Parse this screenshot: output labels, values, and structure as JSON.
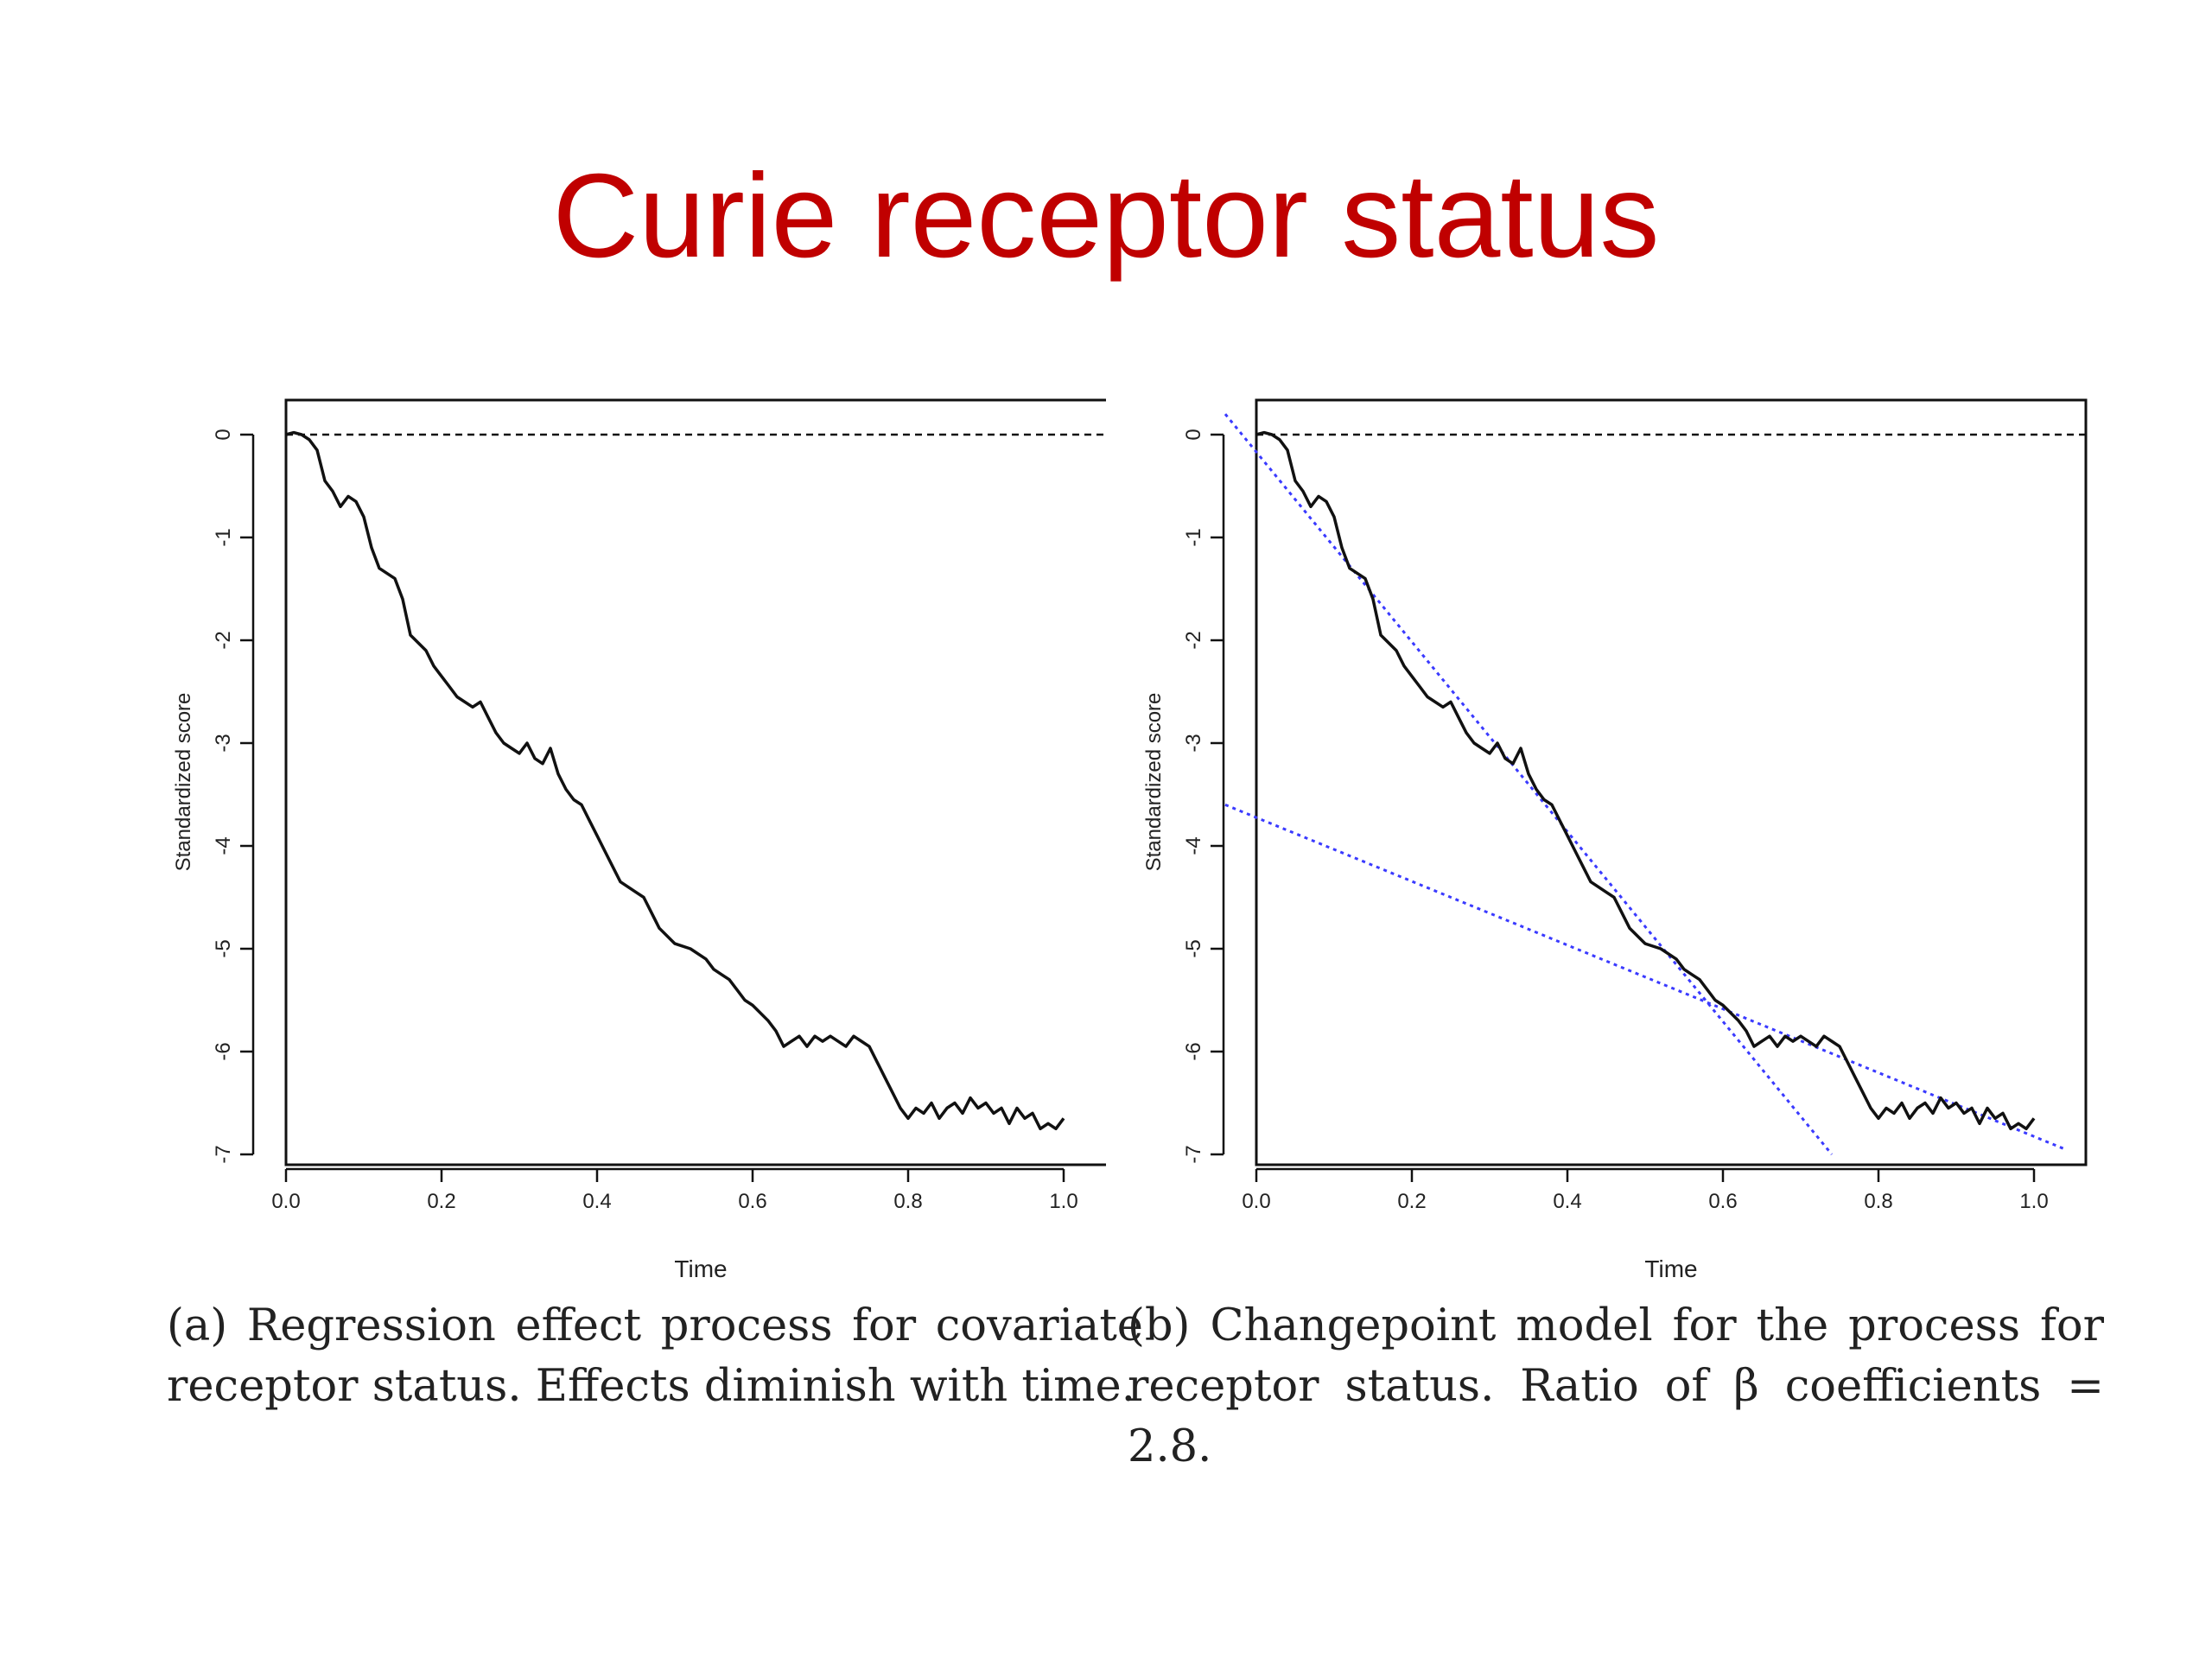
{
  "slide": {
    "title": "Curie receptor status"
  },
  "captions": [
    {
      "text": "(a) Regression effect process for covariate receptor status. Effects diminish with time."
    },
    {
      "text": "(b) Changepoint model for the process for receptor status. Ratio of β coefficients = 2.8."
    }
  ],
  "colors": {
    "title": "#c00000",
    "process_line": "#111111",
    "reference_line": "#111111",
    "fit_lines": "#3a3aff"
  },
  "chart_data": [
    {
      "type": "line",
      "xlabel": "Time",
      "ylabel": "Standardized score",
      "xlim": [
        0.0,
        1.0
      ],
      "ylim": [
        -7,
        0
      ],
      "xticks": [
        "0.0",
        "0.2",
        "0.4",
        "0.6",
        "0.8",
        "1.0"
      ],
      "yticks": [
        "0",
        "-1",
        "-2",
        "-3",
        "-4",
        "-5",
        "-6",
        "-7"
      ],
      "reference_line": {
        "y": 0,
        "style": "dashed"
      },
      "series": [
        {
          "x": [
            0.0,
            0.01,
            0.02,
            0.03,
            0.04,
            0.05,
            0.06,
            0.07,
            0.08,
            0.09,
            0.1,
            0.11,
            0.12,
            0.14,
            0.15,
            0.16,
            0.18,
            0.19,
            0.2,
            0.21,
            0.22,
            0.24,
            0.25,
            0.26,
            0.27,
            0.28,
            0.29,
            0.3,
            0.31,
            0.32,
            0.33,
            0.34,
            0.35,
            0.36,
            0.37,
            0.38,
            0.39,
            0.4,
            0.41,
            0.42,
            0.43,
            0.44,
            0.45,
            0.46,
            0.47,
            0.48,
            0.5,
            0.52,
            0.54,
            0.55,
            0.56,
            0.57,
            0.58,
            0.59,
            0.6,
            0.62,
            0.63,
            0.64,
            0.65,
            0.66,
            0.67,
            0.68,
            0.69,
            0.7,
            0.72,
            0.73,
            0.74,
            0.75,
            0.76,
            0.77,
            0.78,
            0.79,
            0.8,
            0.81,
            0.82,
            0.83,
            0.84,
            0.85,
            0.86,
            0.87,
            0.88,
            0.89,
            0.9,
            0.91,
            0.92,
            0.93,
            0.94,
            0.95,
            0.96,
            0.97,
            0.98,
            0.99,
            1.0
          ],
          "y": [
            0.0,
            0.02,
            0.0,
            -0.05,
            -0.15,
            -0.45,
            -0.55,
            -0.7,
            -0.6,
            -0.65,
            -0.8,
            -1.1,
            -1.3,
            -1.4,
            -1.6,
            -1.95,
            -2.1,
            -2.25,
            -2.35,
            -2.45,
            -2.55,
            -2.65,
            -2.6,
            -2.75,
            -2.9,
            -3.0,
            -3.05,
            -3.1,
            -3.0,
            -3.15,
            -3.2,
            -3.05,
            -3.3,
            -3.45,
            -3.55,
            -3.6,
            -3.75,
            -3.9,
            -4.05,
            -4.2,
            -4.35,
            -4.4,
            -4.45,
            -4.5,
            -4.65,
            -4.8,
            -4.95,
            -5.0,
            -5.1,
            -5.2,
            -5.25,
            -5.3,
            -5.4,
            -5.5,
            -5.55,
            -5.7,
            -5.8,
            -5.95,
            -5.9,
            -5.85,
            -5.95,
            -5.85,
            -5.9,
            -5.85,
            -5.95,
            -5.85,
            -5.9,
            -5.95,
            -6.1,
            -6.25,
            -6.4,
            -6.55,
            -6.65,
            -6.55,
            -6.6,
            -6.5,
            -6.65,
            -6.55,
            -6.5,
            -6.6,
            -6.45,
            -6.55,
            -6.5,
            -6.6,
            -6.55,
            -6.7,
            -6.55,
            -6.65,
            -6.6,
            -6.75,
            -6.7,
            -6.75,
            -6.65
          ]
        }
      ]
    },
    {
      "type": "line",
      "xlabel": "Time",
      "ylabel": "Standardized score",
      "xlim": [
        0.0,
        1.0
      ],
      "ylim": [
        -7,
        0
      ],
      "xticks": [
        "0.0",
        "0.2",
        "0.4",
        "0.6",
        "0.8",
        "1.0"
      ],
      "yticks": [
        "0",
        "-1",
        "-2",
        "-3",
        "-4",
        "-5",
        "-6",
        "-7"
      ],
      "reference_line": {
        "y": 0,
        "style": "dashed"
      },
      "series": [
        {
          "x": [
            0.0,
            0.01,
            0.02,
            0.03,
            0.04,
            0.05,
            0.06,
            0.07,
            0.08,
            0.09,
            0.1,
            0.11,
            0.12,
            0.14,
            0.15,
            0.16,
            0.18,
            0.19,
            0.2,
            0.21,
            0.22,
            0.24,
            0.25,
            0.26,
            0.27,
            0.28,
            0.29,
            0.3,
            0.31,
            0.32,
            0.33,
            0.34,
            0.35,
            0.36,
            0.37,
            0.38,
            0.39,
            0.4,
            0.41,
            0.42,
            0.43,
            0.44,
            0.45,
            0.46,
            0.47,
            0.48,
            0.5,
            0.52,
            0.54,
            0.55,
            0.56,
            0.57,
            0.58,
            0.59,
            0.6,
            0.62,
            0.63,
            0.64,
            0.65,
            0.66,
            0.67,
            0.68,
            0.69,
            0.7,
            0.72,
            0.73,
            0.74,
            0.75,
            0.76,
            0.77,
            0.78,
            0.79,
            0.8,
            0.81,
            0.82,
            0.83,
            0.84,
            0.85,
            0.86,
            0.87,
            0.88,
            0.89,
            0.9,
            0.91,
            0.92,
            0.93,
            0.94,
            0.95,
            0.96,
            0.97,
            0.98,
            0.99,
            1.0
          ],
          "y": [
            0.0,
            0.02,
            0.0,
            -0.05,
            -0.15,
            -0.45,
            -0.55,
            -0.7,
            -0.6,
            -0.65,
            -0.8,
            -1.1,
            -1.3,
            -1.4,
            -1.6,
            -1.95,
            -2.1,
            -2.25,
            -2.35,
            -2.45,
            -2.55,
            -2.65,
            -2.6,
            -2.75,
            -2.9,
            -3.0,
            -3.05,
            -3.1,
            -3.0,
            -3.15,
            -3.2,
            -3.05,
            -3.3,
            -3.45,
            -3.55,
            -3.6,
            -3.75,
            -3.9,
            -4.05,
            -4.2,
            -4.35,
            -4.4,
            -4.45,
            -4.5,
            -4.65,
            -4.8,
            -4.95,
            -5.0,
            -5.1,
            -5.2,
            -5.25,
            -5.3,
            -5.4,
            -5.5,
            -5.55,
            -5.7,
            -5.8,
            -5.95,
            -5.9,
            -5.85,
            -5.95,
            -5.85,
            -5.9,
            -5.85,
            -5.95,
            -5.85,
            -5.9,
            -5.95,
            -6.1,
            -6.25,
            -6.4,
            -6.55,
            -6.65,
            -6.55,
            -6.6,
            -6.5,
            -6.65,
            -6.55,
            -6.5,
            -6.6,
            -6.45,
            -6.55,
            -6.5,
            -6.6,
            -6.55,
            -6.7,
            -6.55,
            -6.65,
            -6.6,
            -6.75,
            -6.7,
            -6.75,
            -6.65
          ]
        }
      ],
      "fit_lines": [
        {
          "x": [
            -0.04,
            0.74
          ],
          "y": [
            0.2,
            -7.0
          ],
          "style": "dotted"
        },
        {
          "x": [
            -0.04,
            1.04
          ],
          "y": [
            -3.6,
            -6.95
          ],
          "style": "dotted"
        }
      ]
    }
  ]
}
